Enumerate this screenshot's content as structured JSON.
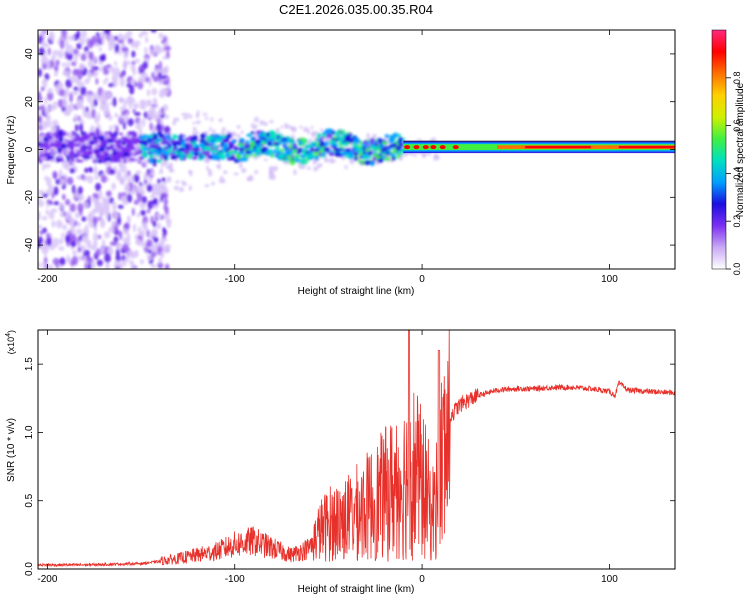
{
  "title": "C2E1.2026.035.00.35.R04",
  "chart_data": [
    {
      "type": "heatmap",
      "title": "C2E1.2026.035.00.35.R04",
      "xlabel": "Height of straight line (km)",
      "ylabel": "Frequency (Hz)",
      "xlim": [
        -205,
        135
      ],
      "ylim": [
        -50,
        50
      ],
      "x_ticks": [
        -200,
        -100,
        0,
        100
      ],
      "x_tick_labels": [
        "-200",
        "-100",
        "0",
        "100"
      ],
      "y_ticks": [
        -40,
        -20,
        0,
        20,
        40
      ],
      "y_tick_labels": [
        "-40",
        "-20",
        "0",
        "20",
        "40"
      ],
      "colorbar": {
        "label": "Normalized spectral amplitude",
        "range": [
          0,
          1
        ],
        "ticks": [
          0.0,
          0.2,
          0.4,
          0.6,
          0.8
        ],
        "tick_labels": [
          "0.0",
          "0.2",
          "0.4",
          "0.6",
          "0.8"
        ],
        "colors": [
          "#ffffff",
          "#c9a8f5",
          "#7b2ff2",
          "#1a0fe0",
          "#00a0ff",
          "#00e0c0",
          "#40f040",
          "#d0f000",
          "#ffd000",
          "#ff7000",
          "#ff0000",
          "#ff2a80"
        ]
      },
      "description_series": [
        {
          "name": "noise-region",
          "x_range": [
            -205,
            -140
          ],
          "freq_range": [
            -50,
            50
          ],
          "amplitude": 0.15
        },
        {
          "name": "carrier-noisy",
          "x_range": [
            -155,
            -10
          ],
          "center_hz": 1,
          "amplitude": 0.4
        },
        {
          "name": "carrier-clean",
          "x_range": [
            -10,
            135
          ],
          "center_hz": 1,
          "amplitude": 0.95
        }
      ]
    },
    {
      "type": "line",
      "xlabel": "Height of straight line (km)",
      "ylabel": "SNR (10 * v/v)",
      "y_scale_label": "(x10",
      "y_scale_exp": "4",
      "y_scale_close": ")",
      "xlim": [
        -205,
        135
      ],
      "ylim": [
        0,
        1.75
      ],
      "x_ticks": [
        -200,
        -100,
        0,
        100
      ],
      "x_tick_labels": [
        "-200",
        "-100",
        "0",
        "100"
      ],
      "y_ticks": [
        0.0,
        0.5,
        1.0,
        1.5
      ],
      "y_tick_labels": [
        "0.0",
        "0.5",
        "1.0",
        "1.5"
      ],
      "series": [
        {
          "name": "SNR",
          "color": "#e8302a",
          "x": [
            -205,
            -180,
            -150,
            -130,
            -120,
            -110,
            -100,
            -90,
            -80,
            -70,
            -60,
            -55,
            -50,
            -45,
            -40,
            -35,
            -30,
            -25,
            -20,
            -15,
            -10,
            -7,
            -5,
            -2,
            0,
            3,
            5,
            8,
            10,
            12,
            15,
            20,
            25,
            30,
            35,
            40,
            50,
            60,
            70,
            80,
            90,
            95,
            100,
            103,
            105,
            110,
            120,
            135
          ],
          "y": [
            0.02,
            0.02,
            0.03,
            0.06,
            0.08,
            0.1,
            0.14,
            0.16,
            0.12,
            0.08,
            0.12,
            0.28,
            0.35,
            0.38,
            0.4,
            0.45,
            0.5,
            0.55,
            0.62,
            0.68,
            0.75,
            0.8,
            0.85,
            0.78,
            0.7,
            0.6,
            0.42,
            0.6,
            0.85,
            1.0,
            1.12,
            1.2,
            1.24,
            1.27,
            1.29,
            1.31,
            1.32,
            1.32,
            1.33,
            1.33,
            1.32,
            1.31,
            1.3,
            1.27,
            1.36,
            1.31,
            1.3,
            1.29
          ]
        }
      ]
    }
  ]
}
